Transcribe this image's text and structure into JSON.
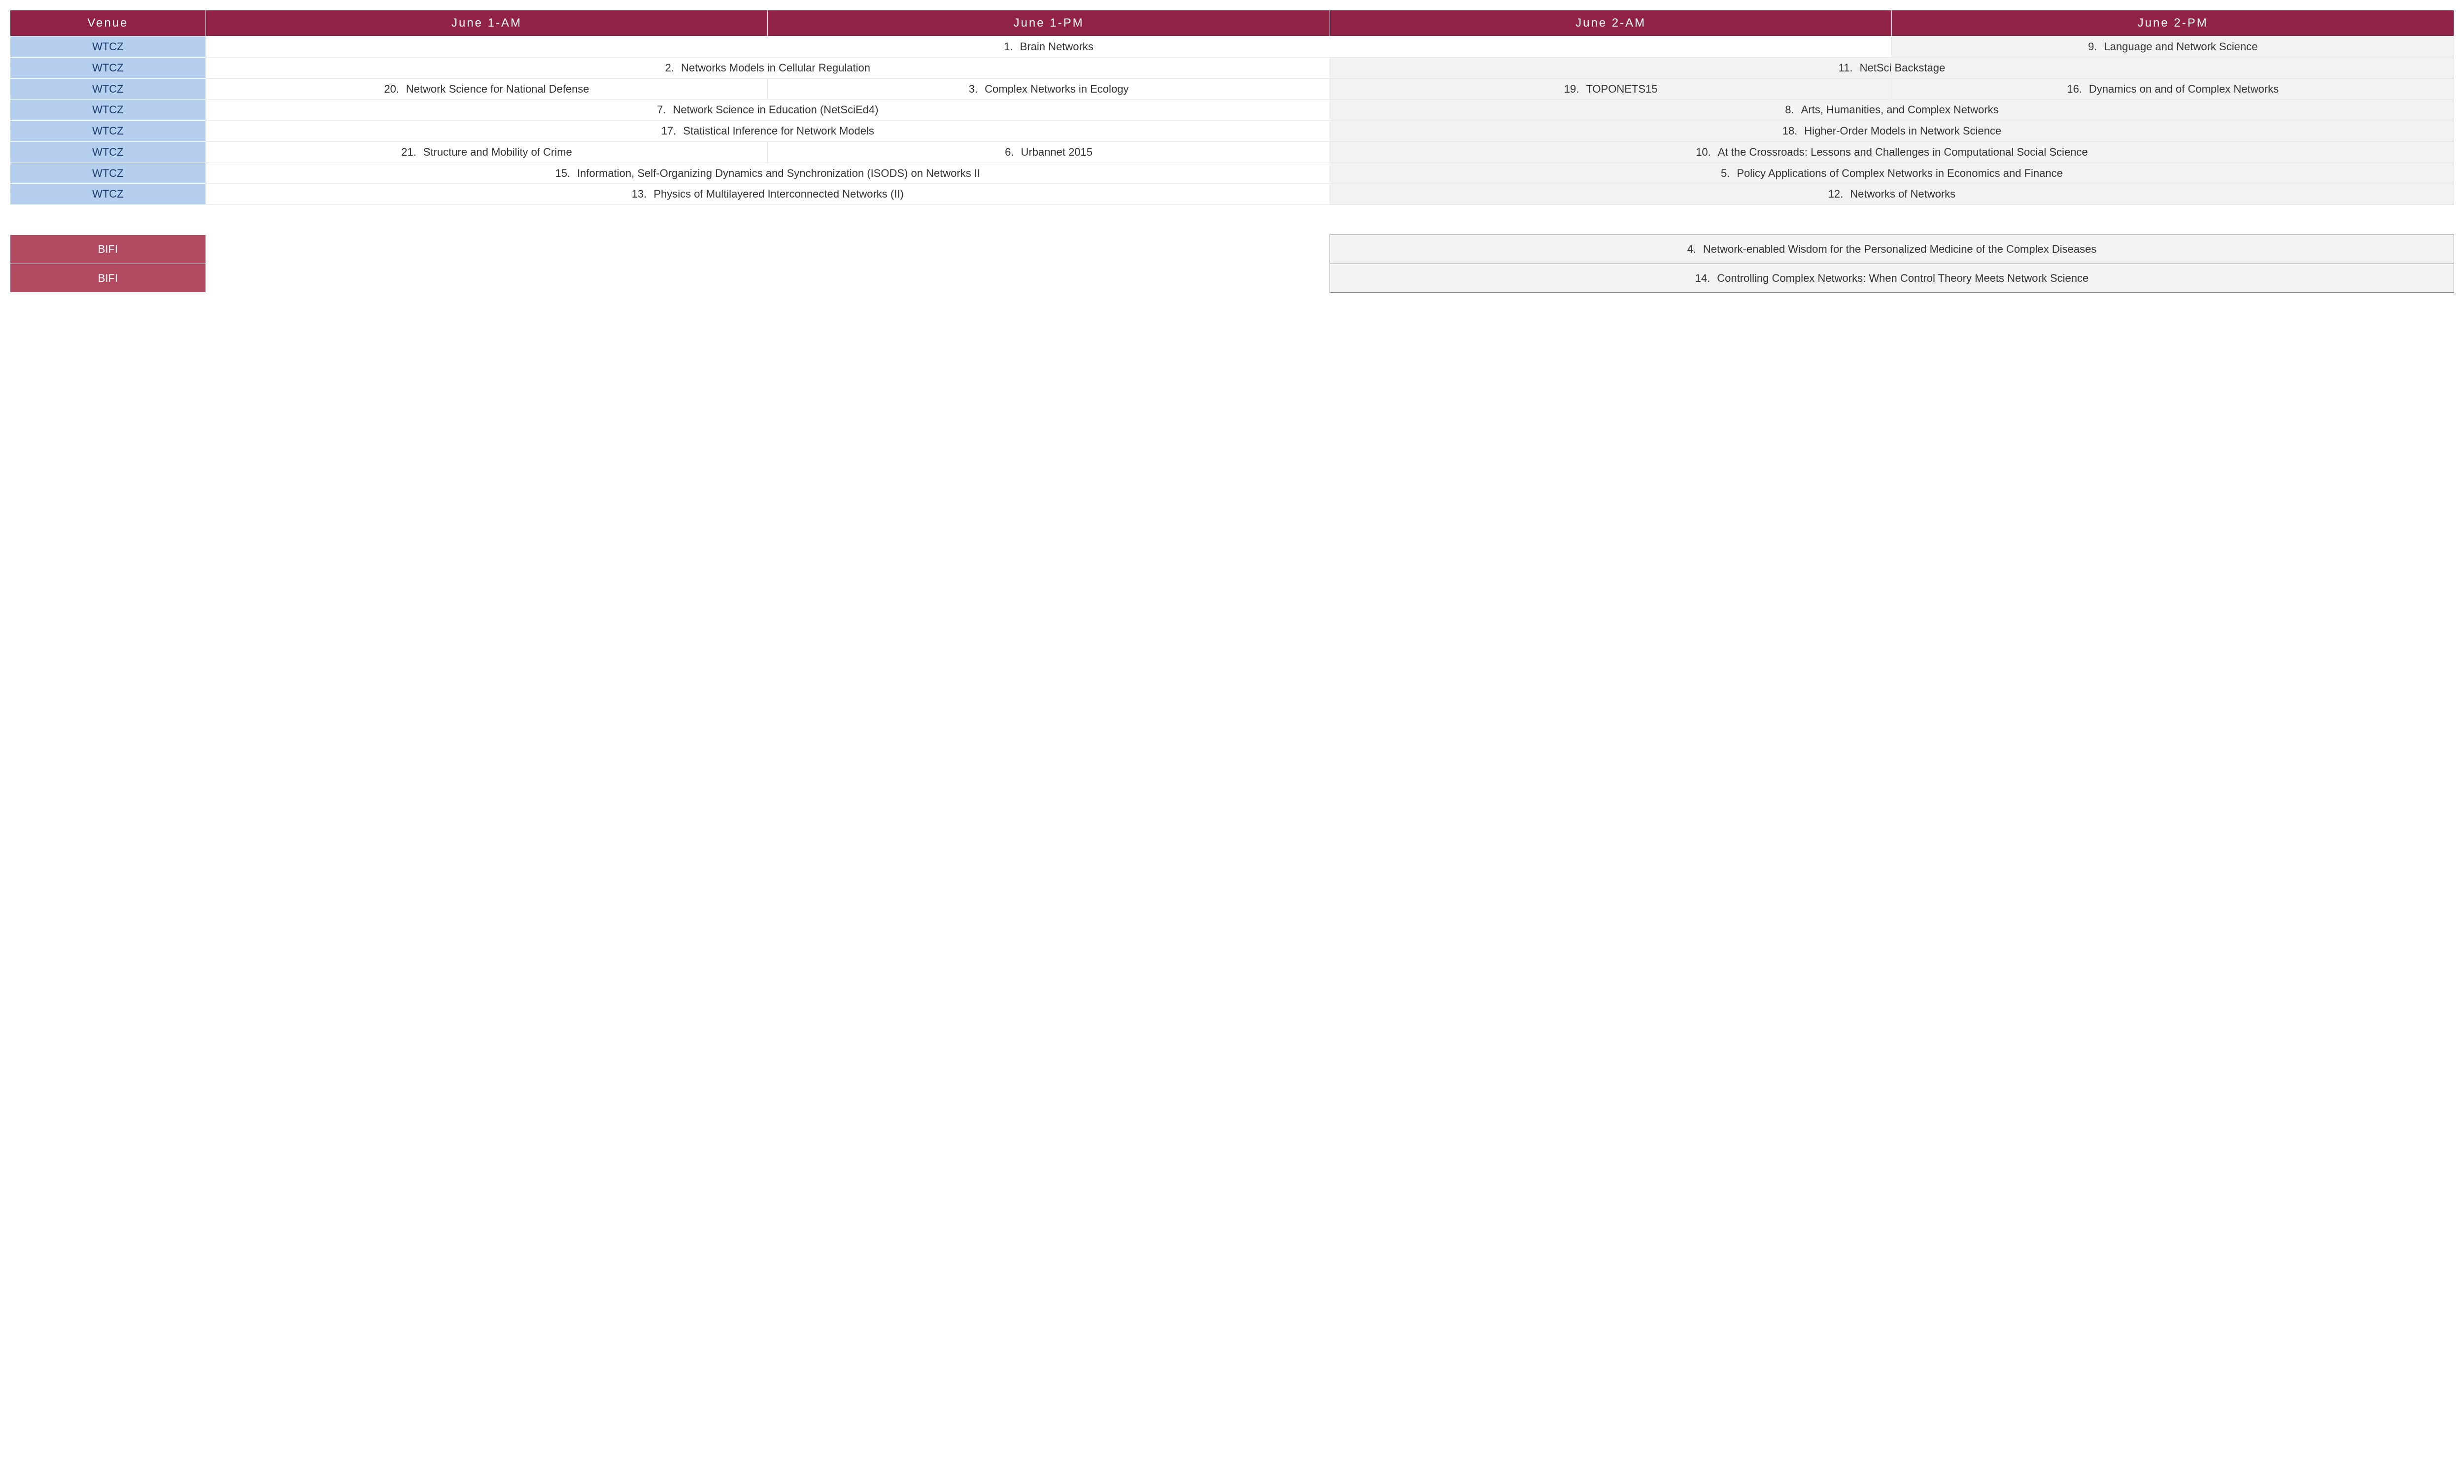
{
  "colors": {
    "header_bg": "#8f2245",
    "venue_blue": "#b6cfee",
    "venue_dark": "#b24a62",
    "day2_bg": "#f2f2f2"
  },
  "headers": {
    "venue": "Venue",
    "c1": "June 1-AM",
    "c2": "June 1-PM",
    "c3": "June 2-AM",
    "c4": "June 2-PM"
  },
  "venue_labels": {
    "wtcz": "WTCZ",
    "bifi": "BIFI"
  },
  "sessions": {
    "s1": {
      "num": "1.",
      "title": "Brain Networks"
    },
    "s2": {
      "num": "2.",
      "title": "Networks Models in Cellular Regulation"
    },
    "s3": {
      "num": "3.",
      "title": "Complex Networks in Ecology"
    },
    "s4": {
      "num": "4.",
      "title": "Network-enabled Wisdom for the Personalized Medicine of the Complex Diseases"
    },
    "s5": {
      "num": "5.",
      "title": "Policy Applications of Complex Networks in Economics and Finance"
    },
    "s6": {
      "num": "6.",
      "title": "Urbannet 2015"
    },
    "s7": {
      "num": "7.",
      "title": "Network Science in Education (NetSciEd4)"
    },
    "s8": {
      "num": "8.",
      "title": "Arts, Humanities, and Complex Networks"
    },
    "s9": {
      "num": "9.",
      "title": "Language and Network Science"
    },
    "s10": {
      "num": "10.",
      "title": "At the Crossroads: Lessons and Challenges in Computational Social Science"
    },
    "s11": {
      "num": "11.",
      "title": "NetSci Backstage"
    },
    "s12": {
      "num": "12.",
      "title": "Networks of Networks"
    },
    "s13": {
      "num": "13.",
      "title": "Physics of Multilayered Interconnected Networks (II)"
    },
    "s14": {
      "num": "14.",
      "title": "Controlling Complex Networks: When Control Theory Meets Network Science"
    },
    "s15": {
      "num": "15.",
      "title": "Information, Self-Organizing Dynamics and Synchronization (ISODS) on Networks II"
    },
    "s16": {
      "num": "16.",
      "title": "Dynamics on and of Complex Networks"
    },
    "s17": {
      "num": "17.",
      "title": "Statistical Inference for Network Models"
    },
    "s18": {
      "num": "18.",
      "title": "Higher-Order Models in Network Science"
    },
    "s19": {
      "num": "19.",
      "title": "TOPONETS15"
    },
    "s20": {
      "num": "20.",
      "title": "Network Science for National Defense"
    },
    "s21": {
      "num": "21.",
      "title": "Structure and Mobility of Crime"
    }
  }
}
